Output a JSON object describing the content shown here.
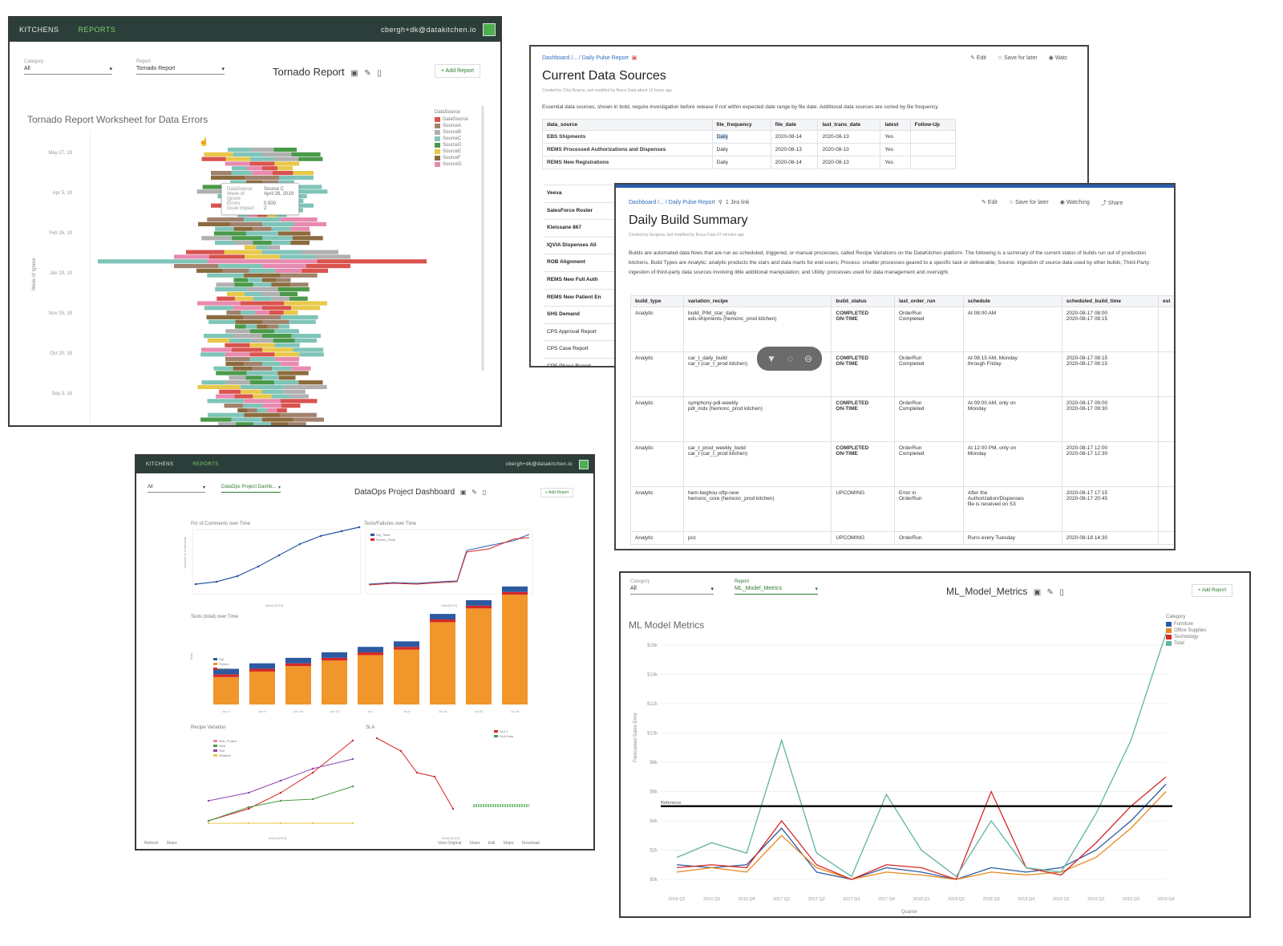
{
  "tornado": {
    "tabs": [
      "KITCHENS",
      "REPORTS"
    ],
    "user": "cbergh+dk@datakitchen.io",
    "category_label": "Category",
    "category_value": "All",
    "report_label": "Report",
    "report_value": "Tornado Report",
    "title": "Tornado Report",
    "add_report": "+ Add Report",
    "chart_title": "Tornado Report Worksheet for Data Errors",
    "y_axis_label": "Week of Ignore",
    "y_ticks": [
      "May 27, 19",
      "Apr 5, 19",
      "Feb 26, 19",
      "Jan 29, 19",
      "Nov 25, 18",
      "Oct 20, 18",
      "Sep 3, 18"
    ],
    "legend_title": "DataSource",
    "legend": [
      {
        "name": "DataSource",
        "color": "#d9534f"
      },
      {
        "name": "SourceA",
        "color": "#a0826d"
      },
      {
        "name": "SourceB",
        "color": "#b0b0b0"
      },
      {
        "name": "SourceC",
        "color": "#7fc4b8"
      },
      {
        "name": "SourceD",
        "color": "#4a9a4a"
      },
      {
        "name": "SourceE",
        "color": "#e8c84a"
      },
      {
        "name": "SourceF",
        "color": "#8b6b3e"
      },
      {
        "name": "SourceG",
        "color": "#e88ab0"
      }
    ],
    "tooltip": [
      {
        "k": "DataSource",
        "v": "Source C"
      },
      {
        "k": "Week of Ignore",
        "v": "April 26, 2019"
      },
      {
        "k": "Errors",
        "v": "0.500"
      },
      {
        "k": "Issue Impact",
        "v": "2"
      }
    ]
  },
  "sources": {
    "breadcrumb": "Dashboard /... / Daily Pulse Report",
    "actions": [
      "Edit",
      "Save for later",
      "Watc"
    ],
    "title": "Current Data Sources",
    "meta": "Created by Chip Bourne, last modified by Bruce Data about 10 hours ago",
    "desc": "Essential data sources, shown in bold, require investigation before release if not within expected date range by file date. Additional data sources are sorted by file frequency.",
    "columns": [
      "data_source",
      "file_frequency",
      "file_date",
      "last_trans_date",
      "latest",
      "Follow-Up"
    ],
    "rows": [
      [
        "EBS Shipments",
        "Daily",
        "2020-08-14",
        "2020-08-13",
        "Yes",
        ""
      ],
      [
        "REMS Processed Authorizations and Dispenses",
        "Daily",
        "2020-08-13",
        "2020-08-13",
        "Yes",
        ""
      ],
      [
        "REMS New Registrations",
        "Daily",
        "2020-08-14",
        "2020-08-13",
        "Yes",
        ""
      ]
    ],
    "more_rows": [
      "Veeva",
      "SalesForce Roster",
      "Kleissane 867",
      "IQVIA Dispenses All",
      "ROB Alignment",
      "REMS New Full Auth",
      "REMS New Patient En",
      "SHS Demand",
      "CPS Approval Report",
      "CPS Case Report",
      "CPS Phase Report"
    ]
  },
  "build": {
    "breadcrumb": "Dashboard /... / Daily Pulse Report",
    "jira": "1 Jira link",
    "actions": [
      "Edit",
      "Save for later",
      "Watching",
      "Share"
    ],
    "title": "Daily Build Summary",
    "meta": "Created by Sergona, last modified by Bruce Data 47 minutes ago",
    "desc": "Builds are automated data flows that are run as scheduled, triggered, or manual processes, called Recipe Variations on the DataKitchen platform. The following is a summary of the current status of builds run out of production kitchens. Build Types are Analytic: analytic products the stars and data marts for end-users; Process: smaller processes geared to a specific task or deliverable; Source: ingestion of source data used by other builds; Third-Party: ingestion of third-party data sources involving little additional manipulation; and Utility: processes used for data management and oversight.",
    "columns": [
      "build_type",
      "variation_recipe",
      "build_status",
      "last_order_run",
      "schedule",
      "scheduled_build_time",
      "est"
    ],
    "rows": [
      {
        "type": "Analytic",
        "recipe": "build_PIM_star_daily\neds-shipments (hemonc_prod kitchen)",
        "status": "COMPLETED\nON-TIME",
        "run": "OrderRun\nCompleted",
        "schedule": "At 08:00 AM",
        "time": "2020-08-17 08:00\n2020-08-17 08:15"
      },
      {
        "type": "Analytic",
        "recipe": "car_t_daily_build\ncar_t (car_t_prod kitchen)",
        "status": "COMPLETED\nON-TIME",
        "run": "OrderRun\nCompleted",
        "schedule": "At 08:15 AM, Monday\nthrough Friday",
        "time": "2020-08-17 08:15\n2020-08-17 08:15"
      },
      {
        "type": "Analytic",
        "recipe": "symphony-pdl-weekly\npdl_mdx (hemonc_prod kitchen)",
        "status": "COMPLETED\nON-TIME",
        "run": "OrderRun\nCompleted",
        "schedule": "At 09:00 AM, only on\nMonday",
        "time": "2020-08-17 09:00\n2020-08-17 09:30"
      },
      {
        "type": "Analytic",
        "recipe": "car_t_prod_weekly_build\ncar_t (car_t_prod kitchen)",
        "status": "COMPLETED\nON-TIME",
        "run": "OrderRun\nCompleted",
        "schedule": "At 12:00 PM, only on\nMonday",
        "time": "2020-08-17 12:00\n2020-08-17 12:30"
      },
      {
        "type": "Analytic",
        "recipe": "hem-beghou-sftp-new\nhemonc_core (hemonc_prod kitchen)",
        "status": "UPCOMING",
        "run": "Error in\nOrderRun",
        "schedule": "After the\nAuthorization/Dispenses\nfile is received on S3",
        "time": "2020-08-17 17:15\n2020-08-17 20:45"
      }
    ],
    "last_row": {
      "type": "Analytic",
      "recipe": "pcc",
      "status": "UPCOMING",
      "run": "OrderRun",
      "schedule": "Runs every Tuesday",
      "time": "2020-08-18 14:30"
    }
  },
  "project": {
    "tabs": [
      "KITCHENS",
      "REPORTS"
    ],
    "user": "cbergh+dk@datakitchen.io",
    "category_value": "All",
    "report_value": "DataOps Project Dashb...",
    "title": "DataOps Project Dashboard",
    "add_report": "+ Add Report",
    "c1_title": "Pct of Comments over Time",
    "c1_ylabel": "Number of Comments",
    "c1_xlabel": "Week [2019]",
    "c2_title": "Tests/Failures over Time",
    "c2_legend": [
      "Sql_Tests",
      "Python_Tests"
    ],
    "c2_xlabel": "Date[2019]",
    "c3_title": "Tests (total) over Time",
    "c3_ylabel": "Tests",
    "c3_legend": [
      "Sql",
      "Python",
      "Warning"
    ],
    "c4_title": "Recipe Variation",
    "c4_legend": [
      "Test_Project",
      "Web",
      "Test",
      "Weather"
    ],
    "c4_xlabel": "Week [2019]",
    "c5_title": "SLA",
    "c5_legend": [
      "SLA 1",
      "SLA Data"
    ],
    "c5_xlabel": "Week [2019]",
    "footer_left": [
      "Refresh",
      "Share"
    ],
    "footer_right": [
      "View Original",
      "Share",
      "Edit",
      "Share",
      "Download"
    ]
  },
  "ml": {
    "category_label": "Category",
    "category_value": "All",
    "report_label": "Report",
    "report_value": "ML_Model_Metrics",
    "title": "ML_Model_Metrics",
    "add_report": "+ Add Report",
    "chart_title": "ML Model Metrics",
    "legend_title": "Category",
    "legend": [
      {
        "name": "Furniture",
        "color": "#2c5aa0"
      },
      {
        "name": "Office Supplies",
        "color": "#e8871e"
      },
      {
        "name": "Technology",
        "color": "#d62728"
      },
      {
        "name": "Total",
        "color": "#5fb3a3"
      }
    ],
    "ylabel": "Forecasted Sales Error",
    "xlabel": "Quarter",
    "threshold_label": "Reference",
    "yticks": [
      "$0k",
      "$2k",
      "$4k",
      "$6k",
      "$8k",
      "$10k",
      "$12k",
      "$14k",
      "$16k"
    ]
  },
  "chart_data": [
    {
      "type": "line",
      "title": "ML Model Metrics",
      "xlabel": "Quarter",
      "ylabel": "Forecasted Sales Error",
      "categories": [
        "2016 Q2",
        "2016 Q3",
        "2016 Q4",
        "2017 Q1",
        "2017 Q2",
        "2017 Q3",
        "2017 Q4",
        "2018 Q1",
        "2018 Q2",
        "2018 Q3",
        "2018 Q4",
        "2019 Q1",
        "2019 Q2",
        "2019 Q3",
        "2019 Q4"
      ],
      "ylim": [
        0,
        16
      ],
      "series": [
        {
          "name": "Furniture",
          "values": [
            1.0,
            0.8,
            1.0,
            3.5,
            0.5,
            0.0,
            0.8,
            0.5,
            0.0,
            0.8,
            0.5,
            0.8,
            2.0,
            4.0,
            6.5
          ]
        },
        {
          "name": "Office Supplies",
          "values": [
            0.5,
            0.8,
            0.5,
            3.0,
            0.8,
            0.0,
            0.5,
            0.3,
            0.0,
            0.5,
            0.3,
            0.5,
            1.5,
            3.5,
            6.0
          ]
        },
        {
          "name": "Technology",
          "values": [
            0.8,
            1.0,
            0.8,
            4.0,
            1.0,
            0.0,
            1.0,
            0.8,
            0.0,
            6.0,
            0.8,
            0.3,
            2.5,
            5.0,
            7.0
          ]
        },
        {
          "name": "Total",
          "values": [
            1.5,
            2.5,
            1.8,
            9.5,
            1.8,
            0.2,
            5.8,
            2.0,
            0.2,
            4.0,
            0.8,
            0.5,
            4.5,
            9.5,
            16.8
          ]
        }
      ],
      "reference_line": 5.0
    },
    {
      "type": "bar",
      "title": "Tests (total) over Time",
      "categories": [
        "Jun 2",
        "Jun 9",
        "Jun 16",
        "Jun 23",
        "Jul 1",
        "Jul 8",
        "Jul 15",
        "Jul 22",
        "Jul 29"
      ],
      "series": [
        {
          "name": "Sql",
          "values": [
            10,
            12,
            14,
            16,
            18,
            20,
            30,
            35,
            40
          ]
        },
        {
          "name": "Python",
          "values": [
            2,
            2,
            2,
            2,
            2,
            2,
            2,
            2,
            2
          ]
        },
        {
          "name": "Warning",
          "values": [
            1,
            1,
            1,
            1,
            1,
            1,
            1,
            1,
            1
          ]
        }
      ]
    }
  ]
}
